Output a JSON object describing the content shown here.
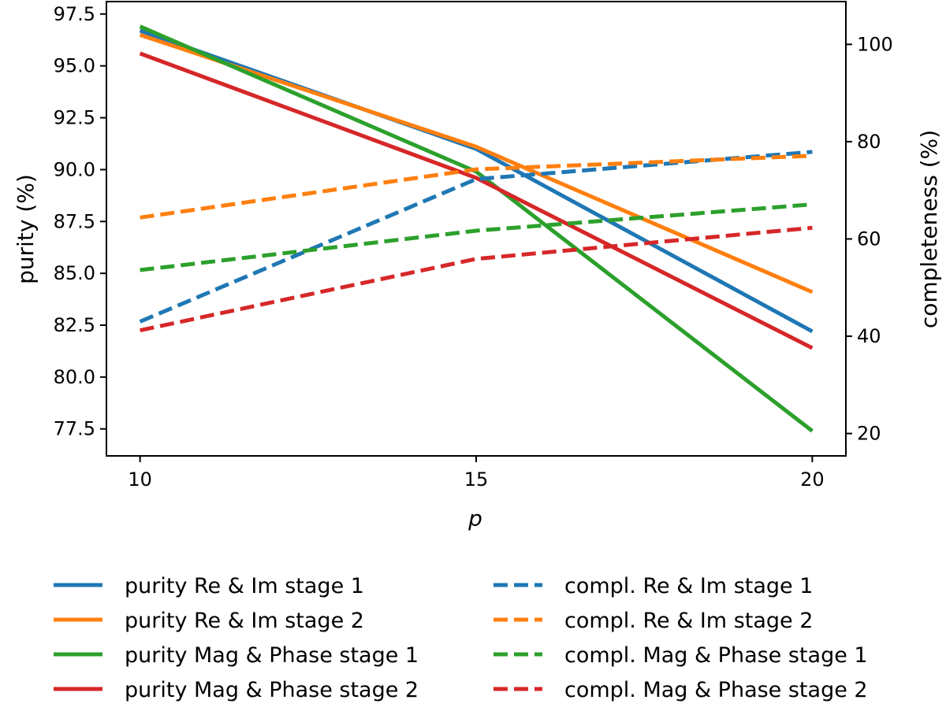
{
  "chart_data": {
    "type": "line",
    "x": [
      10,
      15,
      20
    ],
    "xlabel": "p",
    "ylabel_left": "purity (%)",
    "ylabel_right": "completeness (%)",
    "xticks": [
      "10",
      "15",
      "20"
    ],
    "yticks_left": [
      "77.5",
      "80.0",
      "82.5",
      "85.0",
      "87.5",
      "90.0",
      "92.5",
      "95.0",
      "97.5"
    ],
    "yticks_right": [
      "20",
      "40",
      "60",
      "80",
      "100"
    ],
    "xlim": [
      9.5,
      20.5
    ],
    "ylim_left": [
      76.2,
      98.1
    ],
    "ylim_right": [
      15.4,
      108.8
    ],
    "grid": false,
    "legend_position": "below",
    "series": [
      {
        "name": "purity Re & Im stage 1",
        "axis": "left",
        "style": "solid",
        "color": "#1f77b4",
        "values": [
          96.7,
          91.0,
          82.2
        ]
      },
      {
        "name": "purity Re & Im stage 2",
        "axis": "left",
        "style": "solid",
        "color": "#ff7f0e",
        "values": [
          96.5,
          91.1,
          84.1
        ]
      },
      {
        "name": "purity Mag & Phase stage 1",
        "axis": "left",
        "style": "solid",
        "color": "#2ca02c",
        "values": [
          96.9,
          89.9,
          77.4
        ]
      },
      {
        "name": "purity Mag & Phase stage 2",
        "axis": "left",
        "style": "solid",
        "color": "#d62728",
        "values": [
          95.6,
          89.6,
          81.4
        ]
      },
      {
        "name": "compl. Re & Im stage 1",
        "axis": "right",
        "style": "dashed",
        "color": "#1f77b4",
        "values": [
          43.0,
          72.3,
          77.9
        ]
      },
      {
        "name": "compl. Re & Im stage 2",
        "axis": "right",
        "style": "dashed",
        "color": "#ff7f0e",
        "values": [
          64.4,
          74.3,
          77.1
        ]
      },
      {
        "name": "compl. Mag & Phase stage 1",
        "axis": "right",
        "style": "dashed",
        "color": "#2ca02c",
        "values": [
          53.6,
          61.7,
          67.1
        ]
      },
      {
        "name": "compl. Mag & Phase stage 2",
        "axis": "right",
        "style": "dashed",
        "color": "#d62728",
        "values": [
          41.2,
          55.9,
          62.3
        ]
      }
    ]
  }
}
